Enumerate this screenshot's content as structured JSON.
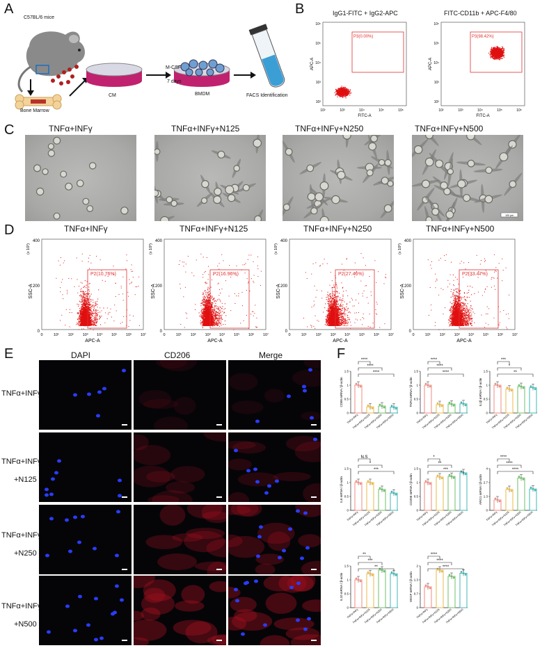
{
  "panels": {
    "A": {
      "label": "A",
      "mouse": "C57BL/6 mice",
      "bone_marrow": "Bone Marrow",
      "cm": "CM",
      "mcsf": "M-CSF",
      "days": "7 days",
      "bmdm": "BMDM",
      "facs": "FACS Identification"
    },
    "B": {
      "label": "B",
      "plots": [
        {
          "title": "IgG1-FITC + IgG2-APC",
          "gate": "P3(0.00%)",
          "xlabel": "FITC-A",
          "ylabel": "APC-A"
        },
        {
          "title": "FITC-CD11b + APC-F4/80",
          "gate": "P3(98.42%)",
          "xlabel": "FITC-A",
          "ylabel": "APC-A"
        }
      ],
      "ticks": [
        "10²",
        "10³",
        "10⁴",
        "10⁵",
        "10⁶"
      ],
      "yticks": [
        "10⁶",
        "10⁵",
        "10⁴",
        "10³",
        "10²"
      ]
    },
    "C": {
      "label": "C",
      "titles": [
        "TNFα+INFγ",
        "TNFα+INFγ+N125",
        "TNFα+INFγ+N250",
        "TNFα+INFγ+N500"
      ],
      "scale": "100 μm"
    },
    "D": {
      "label": "D",
      "plots": [
        {
          "title": "TNFα+INFγ",
          "gate": "P2(10.76%)",
          "density": 0.3
        },
        {
          "title": "TNFα+INFγ+N125",
          "gate": "P2(16.96%)",
          "density": 0.35
        },
        {
          "title": "TNFα+INFγ+N250",
          "gate": "P2(27.46%)",
          "density": 0.45
        },
        {
          "title": "TNFα+INFγ+N500",
          "gate": "P2(33.47%)",
          "density": 0.55
        }
      ],
      "xlabel": "APC-A",
      "ylabel": "SSC-A",
      "yexp": "(x 10³)",
      "yticks": [
        "400",
        "200",
        "0"
      ],
      "xticks": [
        "0",
        "10¹",
        "10²",
        "10³",
        "10⁴",
        "10⁵",
        "10⁶",
        "10⁷"
      ]
    },
    "E": {
      "label": "E",
      "columns": [
        "DAPI",
        "CD206",
        "Merge"
      ],
      "rows": [
        {
          "line1": "TNFα+INFγ",
          "line2": ""
        },
        {
          "line1": "TNFα+INFγ",
          "line2": "+N125"
        },
        {
          "line1": "TNFα+INFγ",
          "line2": "+N250"
        },
        {
          "line1": "TNFα+INFγ",
          "line2": "+N500"
        }
      ]
    },
    "F": {
      "label": "F",
      "groups": [
        "TNFα+INFγ",
        "TNFα+INFγ+N125",
        "TNFα+INFγ+N250",
        "TNFα+INFγ+N500"
      ],
      "colors": [
        "#f08a7e",
        "#e8b84a",
        "#6cbf6a",
        "#3fb7b5"
      ]
    }
  },
  "chart_data": [
    {
      "type": "bar",
      "ylabel": "CD86 mRNA / β-actin",
      "categories": [
        "TNFα+INFγ",
        "TNFα+INFγ+N125",
        "TNFα+INFγ+N250",
        "TNFα+INFγ+N500"
      ],
      "values": [
        1.0,
        0.22,
        0.25,
        0.21
      ],
      "ylim": [
        0,
        1.5
      ],
      "sig": [
        "****",
        "****",
        "****"
      ]
    },
    {
      "type": "bar",
      "ylabel": "TNFα mRNA / β-actin",
      "categories": [
        "TNFα+INFγ",
        "TNFα+INFγ+N125",
        "TNFα+INFγ+N250",
        "TNFα+INFγ+N500"
      ],
      "values": [
        1.0,
        0.3,
        0.32,
        0.33
      ],
      "ylim": [
        0,
        1.5
      ],
      "sig": [
        "****",
        "****",
        "****"
      ]
    },
    {
      "type": "bar",
      "ylabel": "IL1β mRNA / β-actin",
      "categories": [
        "TNFα+INFγ",
        "TNFα+INFγ+N125",
        "TNFα+INFγ+N250",
        "TNFα+INFγ+N500"
      ],
      "values": [
        1.0,
        0.86,
        0.95,
        0.91
      ],
      "ylim": [
        0,
        1.5
      ],
      "sig": [
        "***",
        "*",
        "**"
      ]
    },
    {
      "type": "bar",
      "ylabel": "IL6 mRNA / β-actin",
      "categories": [
        "TNFα+INFγ",
        "TNFα+INFγ+N125",
        "TNFα+INFγ+N250",
        "TNFα+INFγ+N500"
      ],
      "values": [
        1.0,
        1.0,
        0.75,
        0.62
      ],
      "ylim": [
        0,
        1.5
      ],
      "sig": [
        "N.S",
        "*",
        "***"
      ]
    },
    {
      "type": "bar",
      "ylabel": "CD206 mRNA / β-actin",
      "categories": [
        "TNFα+INFγ",
        "TNFα+INFγ+N125",
        "TNFα+INFγ+N250",
        "TNFα+INFγ+N500"
      ],
      "values": [
        1.0,
        1.2,
        1.22,
        1.35
      ],
      "ylim": [
        0,
        1.5
      ],
      "sig": [
        "*",
        "**",
        "***"
      ]
    },
    {
      "type": "bar",
      "ylabel": "ARG1 mRNA / β-actin",
      "categories": [
        "TNFα+INFγ",
        "TNFα+INFγ+N125",
        "TNFα+INFγ+N250",
        "TNFα+INFγ+N500"
      ],
      "values": [
        1.0,
        2.0,
        3.1,
        2.05
      ],
      "ylim": [
        0,
        4
      ],
      "sig": [
        "****",
        "****",
        "****"
      ]
    },
    {
      "type": "bar",
      "ylabel": "IL10 mRNA / β-actin",
      "categories": [
        "TNFα+INFγ",
        "TNFα+INFγ+N125",
        "TNFα+INFγ+N250",
        "TNFα+INFγ+N500"
      ],
      "values": [
        1.0,
        1.22,
        1.35,
        1.22
      ],
      "ylim": [
        0,
        1.5
      ],
      "sig": [
        "**",
        "***",
        "**"
      ]
    },
    {
      "type": "bar",
      "ylabel": "VEGF mRNA / β-actin",
      "categories": [
        "TNFα+INFγ",
        "TNFα+INFγ+N125",
        "TNFα+INFγ+N250",
        "TNFα+INFγ+N500"
      ],
      "values": [
        1.0,
        1.8,
        1.5,
        1.65
      ],
      "ylim": [
        0,
        2
      ],
      "sig": [
        "****",
        "****",
        "****"
      ]
    }
  ]
}
